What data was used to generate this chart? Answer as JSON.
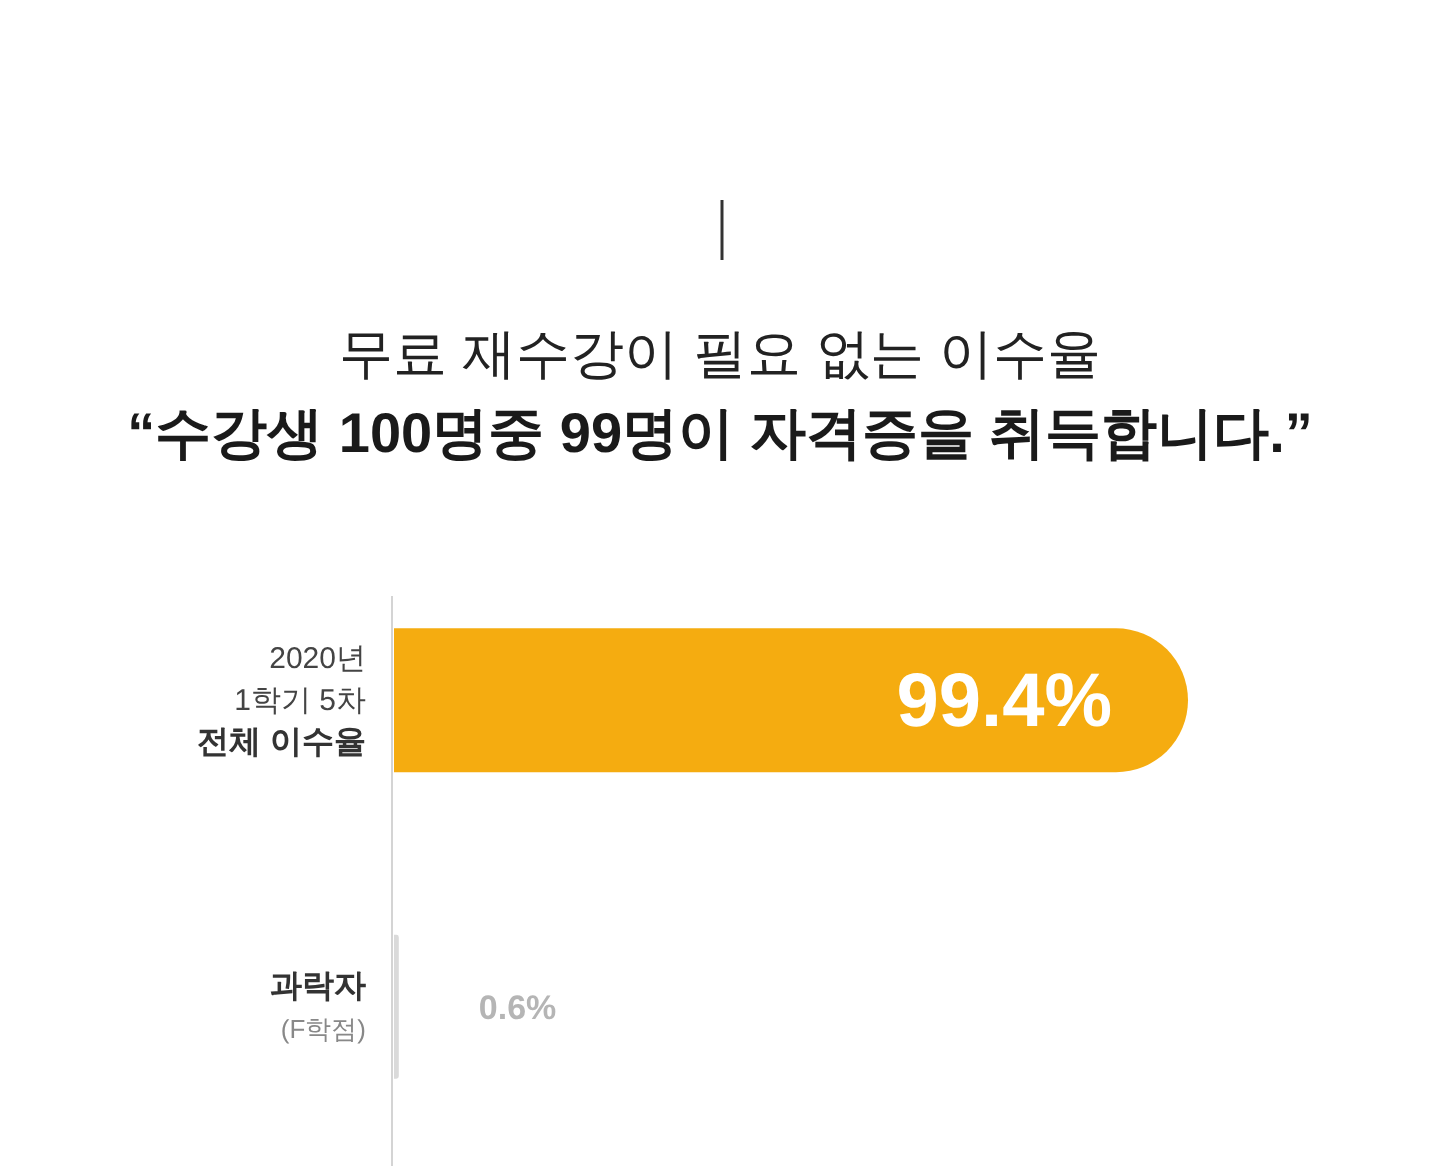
{
  "chart_data": {
    "type": "bar",
    "orientation": "horizontal",
    "title": "무료 재수강이 필요 없는 이수율",
    "subtitle": "“수강생 100명중 99명이 자격증을 취득합니다.”",
    "categories": [
      "2020년\n1학기 5차\n전체 이수율",
      "과락자\n(F학점)"
    ],
    "values": [
      99.4,
      0.6
    ],
    "colors": [
      "#f5ac10",
      "#dadada"
    ],
    "value_labels": [
      "99.4%",
      "0.6%"
    ]
  }
}
